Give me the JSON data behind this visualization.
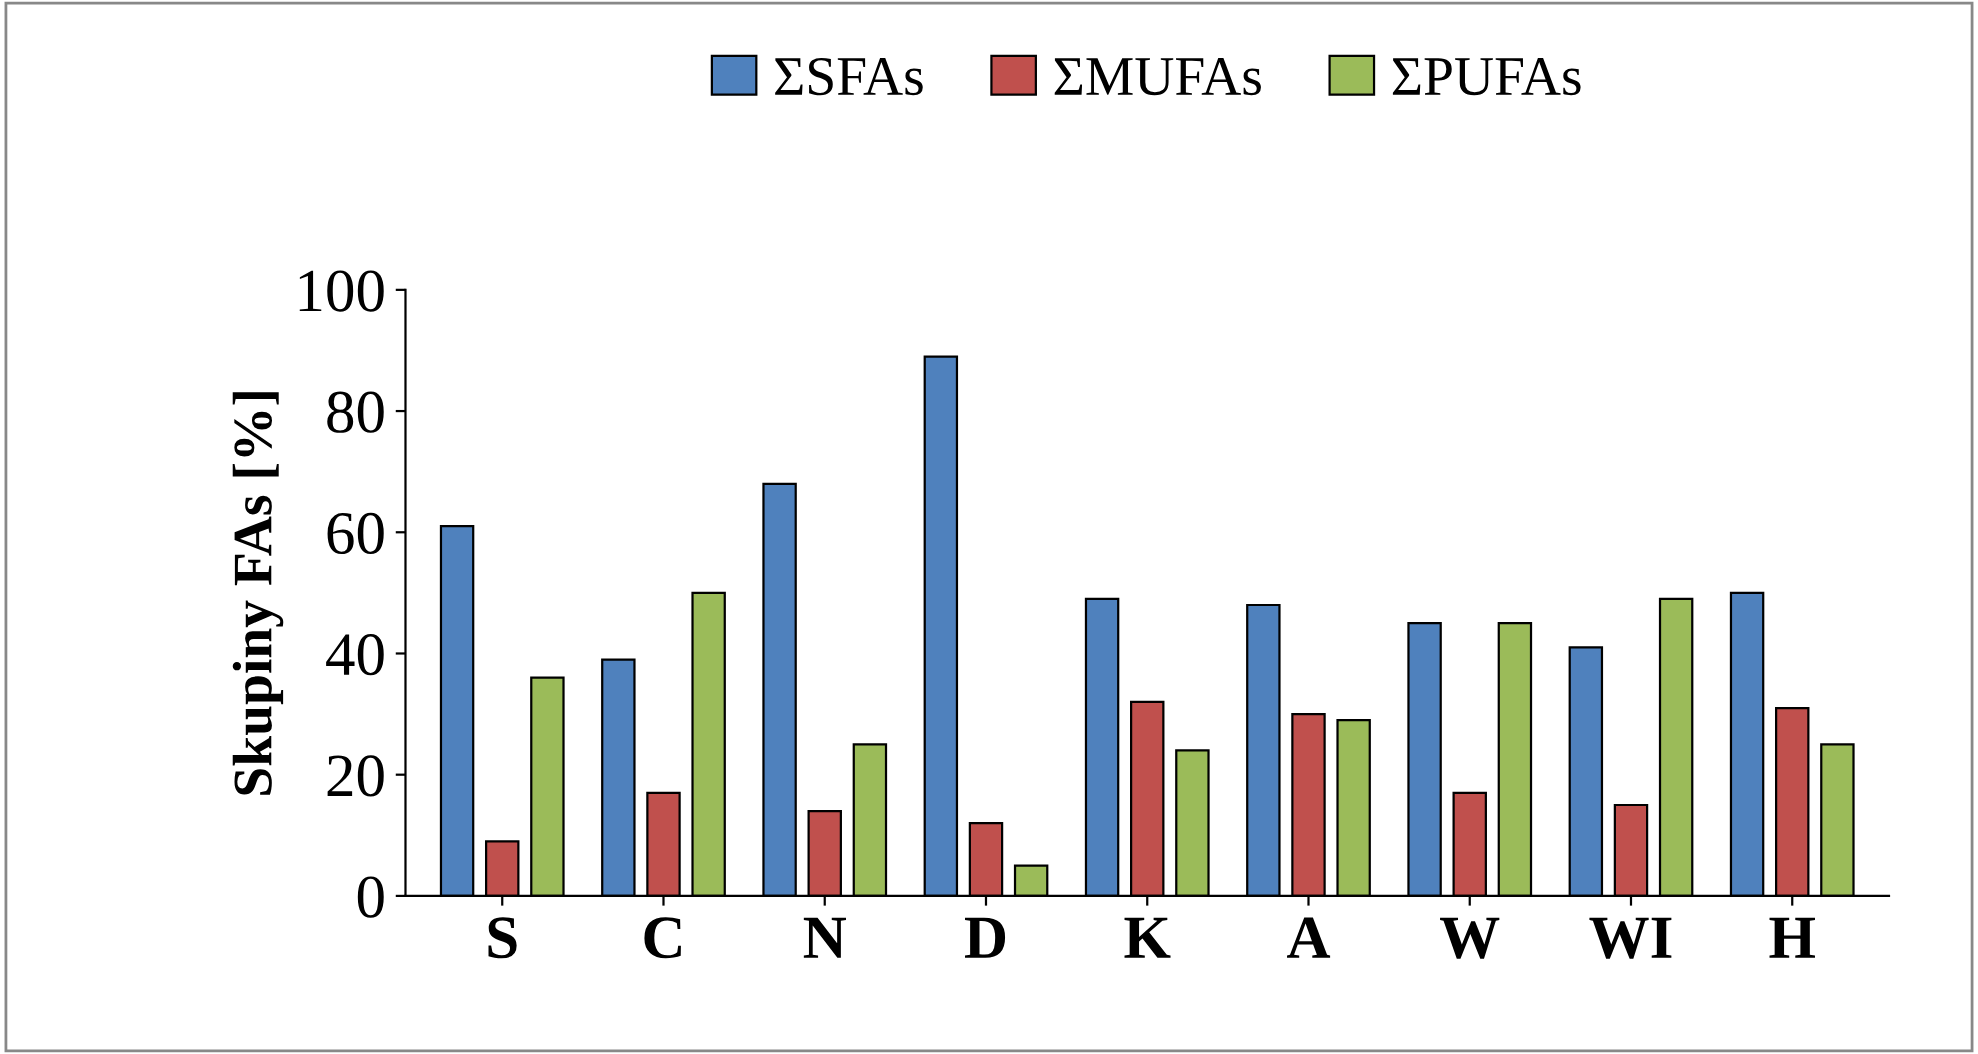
{
  "chart_data": {
    "type": "bar",
    "ylabel": "Skupiny FAs [%]",
    "categories": [
      "S",
      "C",
      "N",
      "D",
      "K",
      "A",
      "W",
      "WI",
      "H"
    ],
    "series": [
      {
        "name": "ΣSFAs",
        "color": "#4f81bd",
        "values": [
          61,
          39,
          68,
          89,
          49,
          48,
          45,
          41,
          50
        ]
      },
      {
        "name": "ΣMUFAs",
        "color": "#c0504d",
        "values": [
          9,
          17,
          14,
          12,
          32,
          30,
          17,
          15,
          31
        ]
      },
      {
        "name": "ΣPUFAs",
        "color": "#9bbb59",
        "values": [
          36,
          50,
          25,
          5,
          24,
          29,
          45,
          49,
          25
        ]
      }
    ],
    "ylim": [
      0,
      100
    ],
    "yticks": [
      0,
      20,
      40,
      60,
      80,
      100
    ],
    "grid": false,
    "legend": "top"
  }
}
